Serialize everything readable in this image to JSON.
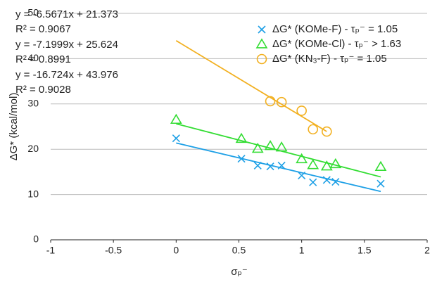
{
  "chart_data": {
    "type": "scatter",
    "xlabel": "σₚ⁻",
    "ylabel": "ΔG* (kcal/mol)",
    "xlim": [
      -1,
      2
    ],
    "xticks": [
      -1,
      -0.5,
      0,
      0.5,
      1,
      1.5,
      2
    ],
    "ylim": [
      0,
      50
    ],
    "yticks": [
      0,
      10,
      20,
      30,
      40,
      50
    ],
    "grid": true,
    "legend": "upper right",
    "series": [
      {
        "name": "ΔG* (KOMe-F) - τₚ⁻ = 1.05",
        "color": "#1ea0e6",
        "marker": "x",
        "x": [
          0,
          0.52,
          0.65,
          0.75,
          0.84,
          1.0,
          1.09,
          1.2,
          1.27,
          1.63
        ],
        "values": [
          22.4,
          17.9,
          16.4,
          16.2,
          16.4,
          14.2,
          12.7,
          13.2,
          12.8,
          12.4
        ],
        "trendline": {
          "slope": -6.5671,
          "intercept": 21.373,
          "label": "y = -6.5671x + 21.373",
          "color": "#1a8cc8"
        },
        "r2": {
          "value": 0.9067,
          "label": "R² = 0.9067"
        }
      },
      {
        "name": "ΔG* (KOMe-Cl) - τₚ⁻ > 1.63",
        "color": "#33dd33",
        "marker": "triangle",
        "x": [
          0,
          0.52,
          0.65,
          0.75,
          0.84,
          1.0,
          1.09,
          1.2,
          1.27,
          1.63
        ],
        "values": [
          26.5,
          22.3,
          20.1,
          20.7,
          20.4,
          17.8,
          16.5,
          16.2,
          16.7,
          16.1
        ],
        "trendline": {
          "slope": -7.1999,
          "intercept": 25.624,
          "label": "y = -7.1999x + 25.624",
          "color": "#22c050"
        },
        "r2": {
          "value": 0.8991,
          "label": "R² = 0.8991"
        }
      },
      {
        "name": "ΔG* (KN₃-F) - τₚ⁻ = 1.05",
        "color": "#f2b020",
        "marker": "circle",
        "x": [
          0.75,
          0.84,
          1.0,
          1.09,
          1.2
        ],
        "values": [
          30.6,
          30.4,
          28.5,
          24.4,
          23.9
        ],
        "trendline": {
          "slope": -16.724,
          "intercept": 43.976,
          "label": "y = -16.724x + 43.976",
          "color": "#f0a020"
        },
        "r2": {
          "value": 0.9028,
          "label": "R² = 0.9028"
        }
      }
    ]
  }
}
